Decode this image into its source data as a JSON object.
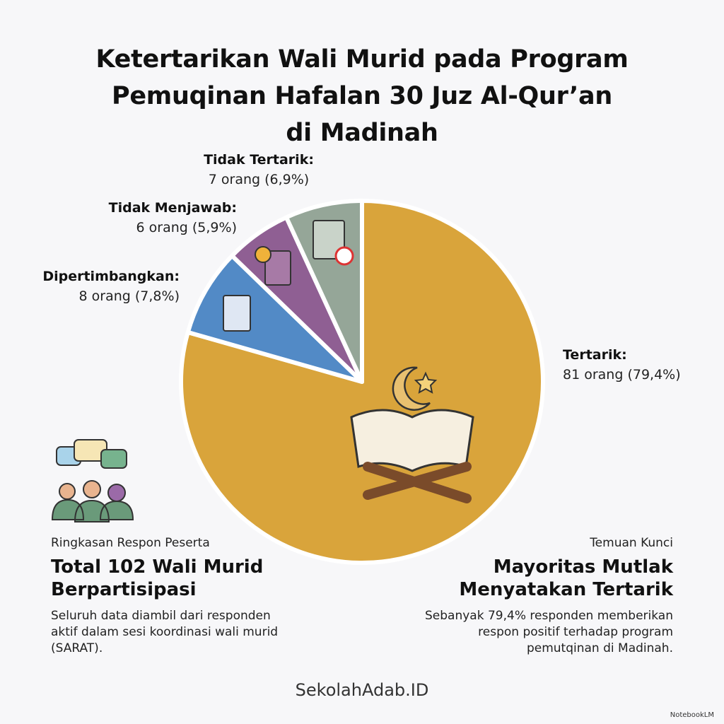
{
  "chart_data": {
    "type": "pie",
    "title": "Ketertarikan Wali Murid pada Program\nPemuqinan Hafalan 30 Juz Al-Qur’an\ndi Madinah",
    "categories": [
      "Tertarik:",
      "Dipertimbangkan:",
      "Tidak Menjawab:",
      "Tidak Tertarik:"
    ],
    "values": [
      81,
      8,
      6,
      7
    ],
    "value_labels": [
      "81 orang (79,4%)",
      "8 orang (7,8%)",
      "6 orang (5,9%)",
      "7 orang (6,9%)"
    ],
    "colors": [
      "#d9a43b",
      "#528ac6",
      "#8f5f93",
      "#95a698"
    ]
  },
  "left_panel": {
    "kicker": "Ringkasan Respon Peserta",
    "heading": "Total 102 Wali Murid\nBerpartisipasi",
    "text": "Seluruh data diambil dari responden\naktif dalam sesi koordinasi wali murid\n(SARAT)."
  },
  "right_panel": {
    "kicker": "Temuan Kunci",
    "heading": "Mayoritas Mutlak\nMenyatakan Tertarik",
    "text": "Sebanyak 79,4% responden memberikan\nrespon positif terhadap program\npemutqinan di Madinah."
  },
  "footer": "SekolahAdab.ID",
  "watermark": "NotebookLM"
}
